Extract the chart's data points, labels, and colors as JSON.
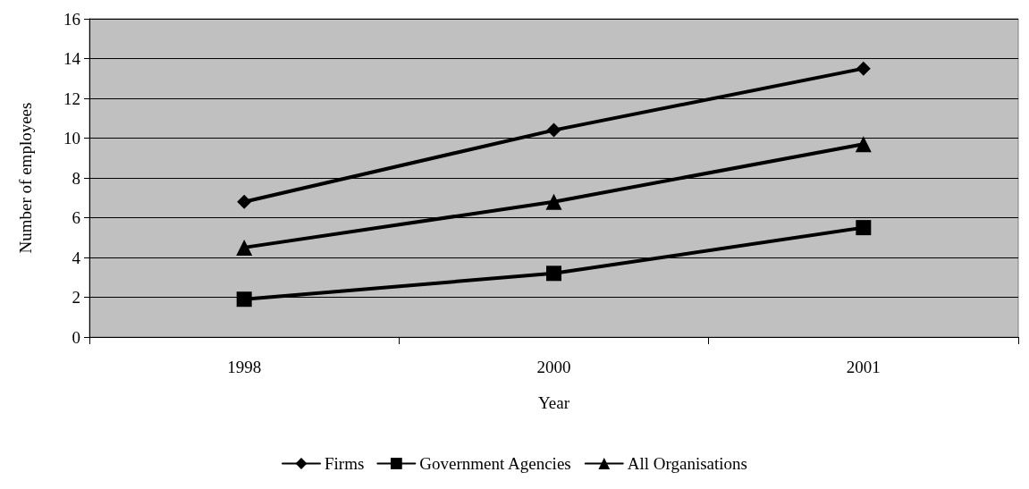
{
  "chart_data": {
    "type": "line",
    "xlabel": "Year",
    "ylabel": "Number of employees",
    "categories": [
      "1998",
      "2000",
      "2001"
    ],
    "series": [
      {
        "name": "Firms",
        "color": "#000000",
        "marker": "diamond",
        "values": [
          6.8,
          10.4,
          13.5
        ]
      },
      {
        "name": "Government Agencies",
        "color": "#000000",
        "marker": "square",
        "values": [
          1.9,
          3.2,
          5.5
        ]
      },
      {
        "name": "All Organisations",
        "color": "#000000",
        "marker": "triangle",
        "values": [
          4.5,
          6.8,
          9.7
        ]
      }
    ],
    "ylim": [
      0,
      16
    ],
    "yticks": [
      0,
      2,
      4,
      6,
      8,
      10,
      12,
      14,
      16
    ],
    "grid": "y",
    "legend": "bottom",
    "line_style": "solid"
  }
}
